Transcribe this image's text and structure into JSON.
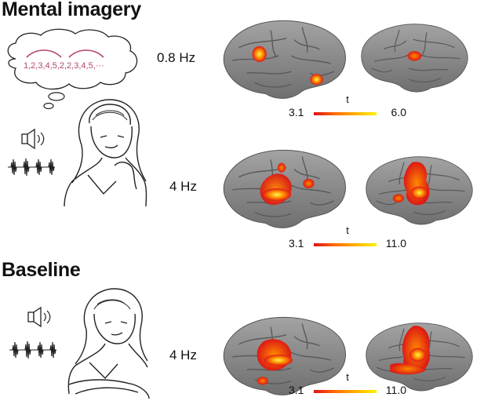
{
  "titles": {
    "mental": "Mental imagery",
    "baseline": "Baseline"
  },
  "thought": {
    "sequence": "1,2,3,4,5,2,2,3,4,5,···"
  },
  "rows": [
    {
      "freq": "0.8 Hz",
      "scale": {
        "label": "t",
        "min": "3.1",
        "max": "6.0"
      }
    },
    {
      "freq": "4 Hz",
      "scale": {
        "label": "t",
        "min": "3.1",
        "max": "11.0"
      }
    },
    {
      "freq": "4 Hz",
      "scale": {
        "label": "t",
        "min": "3.1",
        "max": "11.0"
      }
    }
  ],
  "icons": [
    "speaker-icon",
    "waveform-icon",
    "thought-bubble-icon"
  ],
  "colors": {
    "activation_low": "#e0101a",
    "activation_high": "#fff200",
    "sequence_text": "#b0456f",
    "brain": "#8c8c8c"
  }
}
